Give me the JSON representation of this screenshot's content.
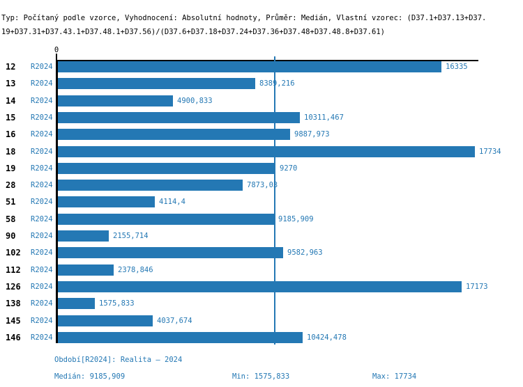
{
  "header": {
    "title_line1": "Typ: Počítaný podle vzorce, Vyhodnocení: Absolutní hodnoty, Průměr: Medián, Vlastní vzorec: (D37.1+D37.13+D37.",
    "title_line2": "19+D37.31+D37.43.1+D37.48.1+D37.56)/(D37.6+D37.18+D37.24+D37.36+D37.48+D37.48.8+D37.61)"
  },
  "axis": {
    "zero_tick_label": "0"
  },
  "chart_data": {
    "type": "bar",
    "orientation": "horizontal",
    "categories": [
      "12",
      "13",
      "14",
      "15",
      "16",
      "18",
      "19",
      "28",
      "51",
      "58",
      "90",
      "102",
      "112",
      "126",
      "138",
      "145",
      "146"
    ],
    "series": [
      {
        "name": "R2024",
        "values": [
          16335,
          8389.216,
          4900.833,
          10311.467,
          9887.973,
          17734,
          9270,
          7873.03,
          4114.4,
          9185.909,
          2155.714,
          9582.963,
          2378.846,
          17173,
          1575.833,
          4037.674,
          10424.478
        ],
        "value_labels": [
          "16335",
          "8389,216",
          "4900,833",
          "10311,467",
          "9887,973",
          "17734",
          "9270",
          "7873,03",
          "4114,4",
          "9185,909",
          "2155,714",
          "9582,963",
          "2378,846",
          "17173",
          "1575,833",
          "4037,674",
          "10424,478"
        ]
      }
    ],
    "annotations": {
      "median_line_value": 9185.909
    },
    "xlim": [
      0,
      17734
    ],
    "x_axis_ticks": [
      "0"
    ],
    "grid": false,
    "legend_position": "none",
    "title": ""
  },
  "footer": {
    "period": "Období[R2024]: Realita – 2024",
    "median": "Medián: 9185,909",
    "min": "Min: 1575,833",
    "max": "Max: 17734"
  },
  "colors": {
    "accent_blue": "#2478B4",
    "text_black": "#000000",
    "background": "#FFFFFF"
  }
}
